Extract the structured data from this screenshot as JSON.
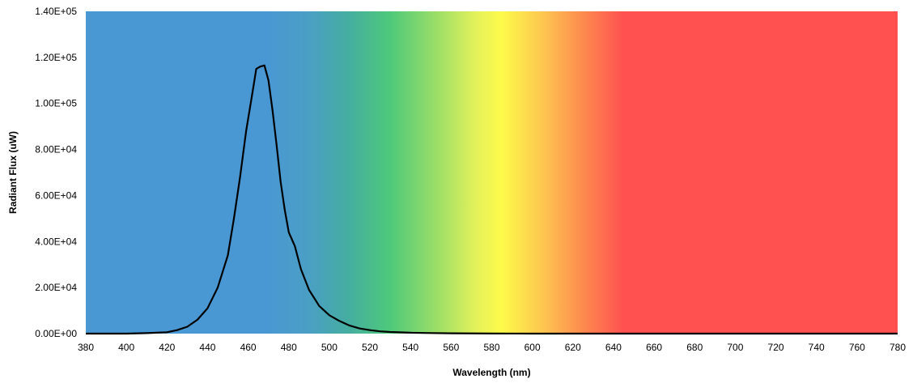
{
  "chart_data": {
    "type": "line",
    "title": "",
    "xlabel": "Wavelength (nm)",
    "ylabel": "Radiant Flux (uW)",
    "xlim": [
      380,
      780
    ],
    "ylim": [
      0,
      140000
    ],
    "x_ticks": [
      "380",
      "400",
      "420",
      "440",
      "460",
      "480",
      "500",
      "520",
      "540",
      "560",
      "580",
      "600",
      "620",
      "640",
      "660",
      "680",
      "700",
      "720",
      "740",
      "760",
      "780"
    ],
    "y_ticks": [
      "0.00E+00",
      "2.00E+04",
      "4.00E+04",
      "6.00E+04",
      "8.00E+04",
      "1.00E+05",
      "1.20E+05",
      "1.40E+05"
    ],
    "grid": false,
    "background": "visible spectrum gradient",
    "spectrum_colors": [
      {
        "nm": 380,
        "color": "#4a98d3"
      },
      {
        "nm": 470,
        "color": "#4a98d3"
      },
      {
        "nm": 490,
        "color": "#4a9fc4"
      },
      {
        "nm": 510,
        "color": "#45ae9f"
      },
      {
        "nm": 530,
        "color": "#4ec97a"
      },
      {
        "nm": 555,
        "color": "#a3e066"
      },
      {
        "nm": 573,
        "color": "#e6f25a"
      },
      {
        "nm": 585,
        "color": "#fdfa4a"
      },
      {
        "nm": 605,
        "color": "#fdc750"
      },
      {
        "nm": 625,
        "color": "#fd8a4e"
      },
      {
        "nm": 645,
        "color": "#fe5150"
      },
      {
        "nm": 780,
        "color": "#fe5150"
      }
    ],
    "series": [
      {
        "color": "#000000",
        "x": [
          380,
          400,
          410,
          420,
          425,
          430,
          435,
          440,
          445,
          450,
          453,
          456,
          459,
          462,
          464,
          466,
          468,
          470,
          472,
          474,
          476,
          478,
          480,
          483,
          486,
          490,
          495,
          500,
          505,
          510,
          515,
          520,
          525,
          530,
          540,
          550,
          560,
          580,
          600,
          650,
          700,
          780
        ],
        "y": [
          0,
          0,
          200,
          600,
          1500,
          3000,
          6000,
          11000,
          20000,
          34000,
          50000,
          68000,
          88000,
          104000,
          115000,
          116000,
          116500,
          110000,
          97000,
          82000,
          66000,
          54000,
          44000,
          38000,
          28000,
          19000,
          12000,
          8000,
          5500,
          3500,
          2200,
          1500,
          1000,
          700,
          400,
          250,
          150,
          50,
          0,
          0,
          0,
          0
        ]
      }
    ]
  }
}
